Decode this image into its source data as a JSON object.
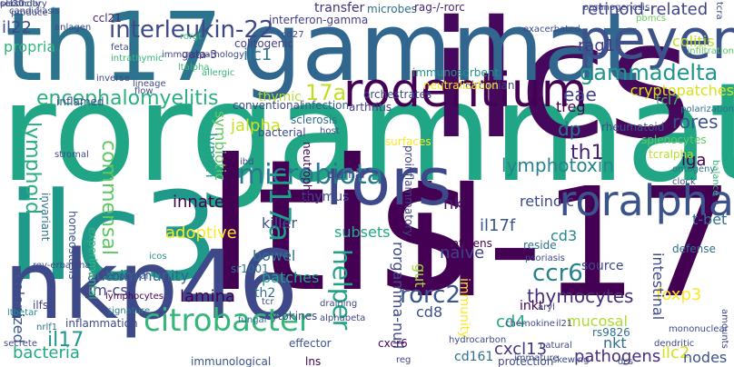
{
  "words": [
    {
      "text": "rorgammat",
      "color": "#21a685"
    },
    {
      "text": "ilcs",
      "color": "#46085c"
    },
    {
      "text": "gammat",
      "color": "#31668e"
    },
    {
      "text": "th17",
      "color": "#2c738e"
    },
    {
      "text": "il-17",
      "color": "#440154"
    },
    {
      "text": "ltis",
      "color": "#440154"
    },
    {
      "text": "ilc3",
      "color": "#1f998a"
    },
    {
      "text": "nkp46",
      "color": "#3e4989"
    },
    {
      "text": "rodentium",
      "color": "#440154"
    },
    {
      "text": "peyer",
      "color": "#3b528b"
    },
    {
      "text": "rors",
      "color": "#3e4989"
    },
    {
      "text": "citrobacter",
      "color": "#35b779"
    },
    {
      "text": "microbiota",
      "color": "#2a788e"
    },
    {
      "text": "roralpha",
      "color": "#3b528b"
    },
    {
      "text": "interleukin-22",
      "color": "#3e4989"
    },
    {
      "text": "encephalomyelitis",
      "color": "#2ab07f"
    },
    {
      "text": "gammadelta",
      "color": "#1f968b"
    },
    {
      "text": "rorc2",
      "color": "#39568c"
    },
    {
      "text": "ccr6",
      "color": "#26828e"
    },
    {
      "text": "helper",
      "color": "#20a386"
    },
    {
      "text": "lymphotoxin",
      "color": "#25838e"
    },
    {
      "text": "il17a",
      "color": "#1f9e89"
    },
    {
      "text": "lymphoid",
      "color": "#27ad81"
    },
    {
      "text": "commensal",
      "color": "#5ec962"
    },
    {
      "text": "rores",
      "color": "#3b528b"
    },
    {
      "text": "retinoid-related",
      "color": "#414487"
    },
    {
      "text": "rag1",
      "color": "#443983"
    },
    {
      "text": "colitis",
      "color": "#bddf26"
    },
    {
      "text": "cryptopatches",
      "color": "#d8e219"
    },
    {
      "text": "17a",
      "color": "#c0df25"
    },
    {
      "text": "jalpha",
      "color": "#c8e020"
    },
    {
      "text": "symbiotic",
      "color": "#5ec962"
    },
    {
      "text": "thymic",
      "color": "#b5de2b"
    },
    {
      "text": "treg",
      "color": "#440154"
    },
    {
      "text": "eae",
      "color": "#404387"
    },
    {
      "text": "iga",
      "color": "#440154"
    },
    {
      "text": "dp",
      "color": "#2b748e"
    },
    {
      "text": "th1",
      "color": "#482173"
    },
    {
      "text": "t-bet",
      "color": "#2c718e"
    },
    {
      "text": "retinoic",
      "color": "#3e4989"
    },
    {
      "text": "nk",
      "color": "#481a6c"
    },
    {
      "text": "il17f",
      "color": "#3a548c"
    },
    {
      "text": "cd3",
      "color": "#24878e"
    },
    {
      "text": "naive",
      "color": "#404387"
    },
    {
      "text": "thymocytes",
      "color": "#472c7a"
    },
    {
      "text": "foxp3",
      "color": "#fde725"
    },
    {
      "text": "killer",
      "color": "#3b528b"
    },
    {
      "text": "adoptive",
      "color": "#fde725"
    },
    {
      "text": "subsets",
      "color": "#22a884"
    },
    {
      "text": "innate",
      "color": "#440154"
    },
    {
      "text": "autoimmunity",
      "color": "#31668e"
    },
    {
      "text": "il17",
      "color": "#1f988b"
    },
    {
      "text": "bacteria",
      "color": "#22a884"
    },
    {
      "text": "rorgamma-null",
      "color": "#3f4889"
    },
    {
      "text": "gut",
      "color": "#a0da39"
    },
    {
      "text": "patches",
      "color": "#20a386"
    },
    {
      "text": "cd8",
      "color": "#3b528b"
    },
    {
      "text": "immunity",
      "color": "#fde725"
    },
    {
      "text": "cd4",
      "color": "#22a884"
    },
    {
      "text": "nkt",
      "color": "#2e6e8e"
    },
    {
      "text": "ilc2",
      "color": "#d2e21b"
    },
    {
      "text": "mucosal",
      "color": "#addc30"
    },
    {
      "text": "cxcl13",
      "color": "#46337e"
    },
    {
      "text": "pathogens",
      "color": "#472d7b"
    },
    {
      "text": "nodes",
      "color": "#3b528b"
    },
    {
      "text": "cd161",
      "color": "#2d708e"
    },
    {
      "text": "inkt",
      "color": "#440154"
    },
    {
      "text": "intestinal",
      "color": "#3e4989"
    },
    {
      "text": "bowel",
      "color": "#2c728e"
    },
    {
      "text": "th2",
      "color": "#2d708e"
    },
    {
      "text": "lamina",
      "color": "#440154"
    },
    {
      "text": "gm-csf",
      "color": "#404387"
    },
    {
      "text": "propria",
      "color": "#2fb47c"
    },
    {
      "text": "il22",
      "color": "#3f4889"
    },
    {
      "text": "ilc1",
      "color": "#287d8e"
    },
    {
      "text": "thymus",
      "color": "#3e4a89"
    },
    {
      "text": "lymph",
      "color": "#1fa088"
    },
    {
      "text": "transfer",
      "color": "#46307e"
    },
    {
      "text": "microbes",
      "color": "#2e6f8e"
    },
    {
      "text": "rag-/-rorc",
      "color": "#482173"
    },
    {
      "text": "interferon-gamma",
      "color": "#433e85"
    },
    {
      "text": "ccl21",
      "color": "#482475"
    },
    {
      "text": "colitogenic",
      "color": "#414487"
    },
    {
      "text": "rorgt",
      "color": "#38b977"
    },
    {
      "text": "gata-3",
      "color": "#46327e"
    },
    {
      "text": "ltalpha",
      "color": "#3dbc74"
    },
    {
      "text": "tcl7",
      "color": "#3fbc73"
    },
    {
      "text": "infiltration",
      "color": "#5ec962"
    },
    {
      "text": "pbmcs",
      "color": "#6ccd5a"
    },
    {
      "text": "tcra",
      "color": "#3e4989"
    },
    {
      "text": "polarization",
      "color": "#2d708e"
    },
    {
      "text": "circadian",
      "color": "#3e4989"
    },
    {
      "text": "neutralization",
      "color": "#fde725"
    },
    {
      "text": "arthritis",
      "color": "#433e85"
    },
    {
      "text": "infection",
      "color": "#355f8d"
    },
    {
      "text": "conventional",
      "color": "#3e4989"
    },
    {
      "text": "inflamed",
      "color": "#3e4989"
    },
    {
      "text": "sclerosis",
      "color": "#2d708e"
    },
    {
      "text": "orchestrates",
      "color": "#3e4989"
    },
    {
      "text": "immunosorbent",
      "color": "#21918c"
    },
    {
      "text": "bacterial",
      "color": "#3e4989"
    },
    {
      "text": "neutrophils",
      "color": "#440154"
    },
    {
      "text": "proinflammatory",
      "color": "#414487"
    },
    {
      "text": "rheumatoid",
      "color": "#3b528b"
    },
    {
      "text": "splenocytes",
      "color": "#5ec962"
    },
    {
      "text": "tcralpha",
      "color": "#b5de2b"
    },
    {
      "text": "ontogeny",
      "color": "#2d708e"
    },
    {
      "text": "clock",
      "color": "#3b528b"
    },
    {
      "text": "balance",
      "color": "#35b779"
    },
    {
      "text": "surfaces",
      "color": "#fde725"
    },
    {
      "text": "diurnal",
      "color": "#3e4989"
    },
    {
      "text": "invariant",
      "color": "#2d708e"
    },
    {
      "text": "rev-erbalpha",
      "color": "#3e4989"
    },
    {
      "text": "homeostasis",
      "color": "#3b528b"
    },
    {
      "text": "experimental",
      "color": "#35b779"
    },
    {
      "text": "peripheral",
      "color": "#3e4989"
    },
    {
      "text": "signature",
      "color": "#2a788e"
    },
    {
      "text": "icos",
      "color": "#21918c"
    },
    {
      "text": "sr1001",
      "color": "#2d708e"
    },
    {
      "text": "antigens",
      "color": "#440154"
    },
    {
      "text": "reside",
      "color": "#2d708e"
    },
    {
      "text": "psoriasis",
      "color": "#3e4989"
    },
    {
      "text": "source",
      "color": "#3e4989"
    },
    {
      "text": "defense",
      "color": "#2d708e"
    },
    {
      "text": "colonized",
      "color": "#3b528b"
    },
    {
      "text": "ilfs",
      "color": "#3e4989"
    },
    {
      "text": "lymphocytes",
      "color": "#440154"
    },
    {
      "text": "ltbetar",
      "color": "#21918c"
    },
    {
      "text": "nrlf1",
      "color": "#2d708e"
    },
    {
      "text": "inflammation",
      "color": "#3e4989"
    },
    {
      "text": "immunological",
      "color": "#3b528b"
    },
    {
      "text": "cytokines",
      "color": "#3e4989"
    },
    {
      "text": "effector",
      "color": "#3b528b"
    },
    {
      "text": "fungal",
      "color": "#2d708e"
    },
    {
      "text": "lns",
      "color": "#440154"
    },
    {
      "text": "cxcr6",
      "color": "#440154"
    },
    {
      "text": "protection",
      "color": "#3e4989"
    },
    {
      "text": "rs9826",
      "color": "#2d708e"
    },
    {
      "text": "dendritic",
      "color": "#3e4989"
    },
    {
      "text": "mononuclear",
      "color": "#3e4989"
    },
    {
      "text": "natural",
      "color": "#3e4989"
    },
    {
      "text": "skewing",
      "color": "#3e4989"
    },
    {
      "text": "dcs",
      "color": "#3b528b"
    },
    {
      "text": "amounts",
      "color": "#3e4989"
    },
    {
      "text": "secrete",
      "color": "#3e4989"
    },
    {
      "text": "reg",
      "color": "#3e4989"
    },
    {
      "text": "tcr",
      "color": "#3e4989"
    },
    {
      "text": "draining",
      "color": "#3e4989"
    },
    {
      "text": "alphabeta",
      "color": "#3e4989"
    },
    {
      "text": "produce",
      "color": "#3e4989"
    },
    {
      "text": "anlagen",
      "color": "#3e4989"
    },
    {
      "text": "immunopathology",
      "color": "#3e4989"
    },
    {
      "text": "fetal",
      "color": "#3e4989"
    },
    {
      "text": "intrathymic",
      "color": "#35b779"
    },
    {
      "text": "inverse",
      "color": "#3e4989"
    },
    {
      "text": "flow",
      "color": "#3e4989"
    },
    {
      "text": "lineage",
      "color": "#3e4989"
    },
    {
      "text": "allergic",
      "color": "#35b779"
    },
    {
      "text": "cd27",
      "color": "#3e4989"
    },
    {
      "text": "organogenesis",
      "color": "#3e4989"
    },
    {
      "text": "exacerbated",
      "color": "#3e4989"
    },
    {
      "text": "candidiasis",
      "color": "#3e4989"
    },
    {
      "text": "host",
      "color": "#3e4989"
    },
    {
      "text": "ibd",
      "color": "#3e4989"
    },
    {
      "text": "aryl",
      "color": "#3e4989"
    },
    {
      "text": "chemokine",
      "color": "#3e4989"
    },
    {
      "text": "stromal",
      "color": "#3e4989"
    },
    {
      "text": "hydrocarbon",
      "color": "#3e4989"
    },
    {
      "text": "immature",
      "color": "#3e4989"
    },
    {
      "text": "il21",
      "color": "#3e4989"
    },
    {
      "text": "ccl20",
      "color": "#3e4989"
    },
    {
      "text": "secondary",
      "color": "#3e4989"
    },
    {
      "text": "plasticity",
      "color": "#3e4989"
    }
  ]
}
